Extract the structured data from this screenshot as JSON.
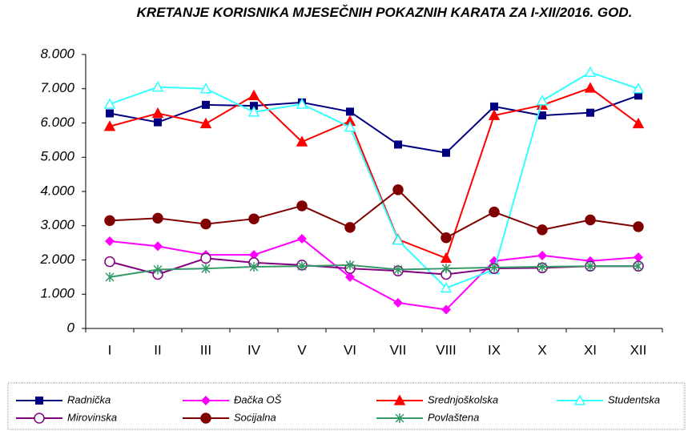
{
  "chart_data": {
    "type": "line",
    "title": "KRETANJE KORISNIKA MJESEČNIH POKAZNIH KARATA ZA I-XII/2016. GOD.",
    "categories": [
      "I",
      "II",
      "III",
      "IV",
      "V",
      "VI",
      "VII",
      "VIII",
      "IX",
      "X",
      "XI",
      "XII"
    ],
    "ylim": [
      0,
      8000
    ],
    "yticks": [
      0,
      {
        "value": 1000,
        "label": "1.000"
      },
      {
        "value": 2000,
        "label": "2.000"
      },
      {
        "value": 3000,
        "label": "3.000"
      },
      {
        "value": 4000,
        "label": "4.000"
      },
      {
        "value": 5000,
        "label": "5.000"
      },
      {
        "value": 6000,
        "label": "6.000"
      },
      {
        "value": 7000,
        "label": "7.000"
      },
      {
        "value": 8000,
        "label": "8.000"
      }
    ],
    "grid": false,
    "legend": "bottom",
    "series": [
      {
        "name": "Radnička",
        "color": "#000080",
        "marker": "square",
        "values": [
          6280,
          6020,
          6530,
          6500,
          6600,
          6330,
          5370,
          5130,
          6480,
          6220,
          6300,
          6800
        ]
      },
      {
        "name": "Đačka OŠ",
        "color": "#ff00ff",
        "marker": "diamond",
        "values": [
          2550,
          2400,
          2150,
          2150,
          2620,
          1500,
          750,
          550,
          1970,
          2130,
          1970,
          2080
        ]
      },
      {
        "name": "Srednjoškolska",
        "color": "#ff0000",
        "marker": "triangle",
        "values": [
          5900,
          6280,
          5980,
          6800,
          5450,
          6050,
          2600,
          2050,
          6220,
          6520,
          7020,
          5980
        ]
      },
      {
        "name": "Studentska",
        "color": "#33ffff",
        "marker": "triangle-open",
        "values": [
          6550,
          7050,
          7000,
          6320,
          6550,
          5880,
          2580,
          1180,
          1720,
          6650,
          7480,
          7000
        ]
      },
      {
        "name": "Mirovinska",
        "color": "#800080",
        "marker": "circle-open",
        "values": [
          1950,
          1580,
          2050,
          1920,
          1850,
          1750,
          1680,
          1580,
          1750,
          1770,
          1820,
          1820
        ]
      },
      {
        "name": "Socijalna",
        "color": "#800000",
        "marker": "circle",
        "values": [
          3150,
          3220,
          3050,
          3200,
          3580,
          2950,
          4050,
          2650,
          3400,
          2880,
          3170,
          2970
        ]
      },
      {
        "name": "Povlaštena",
        "color": "#339966",
        "marker": "star",
        "values": [
          1500,
          1720,
          1750,
          1800,
          1820,
          1850,
          1720,
          1750,
          1780,
          1800,
          1820,
          1820
        ]
      }
    ]
  }
}
